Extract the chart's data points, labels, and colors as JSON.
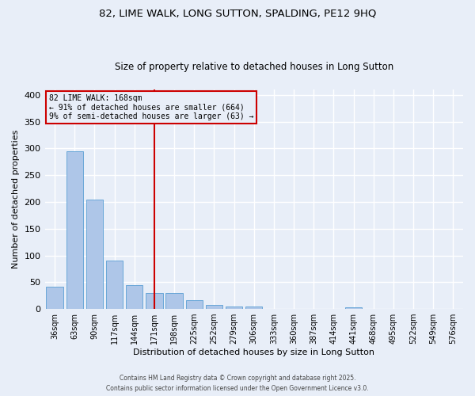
{
  "title_line1": "82, LIME WALK, LONG SUTTON, SPALDING, PE12 9HQ",
  "title_line2": "Size of property relative to detached houses in Long Sutton",
  "xlabel": "Distribution of detached houses by size in Long Sutton",
  "ylabel": "Number of detached properties",
  "categories": [
    "36sqm",
    "63sqm",
    "90sqm",
    "117sqm",
    "144sqm",
    "171sqm",
    "198sqm",
    "225sqm",
    "252sqm",
    "279sqm",
    "306sqm",
    "333sqm",
    "360sqm",
    "387sqm",
    "414sqm",
    "441sqm",
    "468sqm",
    "495sqm",
    "522sqm",
    "549sqm",
    "576sqm"
  ],
  "values": [
    41,
    294,
    204,
    90,
    44,
    30,
    30,
    16,
    8,
    4,
    4,
    0,
    0,
    0,
    0,
    3,
    0,
    0,
    0,
    0,
    0
  ],
  "bar_color": "#aec6e8",
  "bar_edgecolor": "#5a9fd4",
  "vline_x_index": 5,
  "vline_color": "#cc0000",
  "annotation_text": "82 LIME WALK: 168sqm\n← 91% of detached houses are smaller (664)\n9% of semi-detached houses are larger (63) →",
  "annotation_box_color": "#cc0000",
  "annotation_text_color": "#000000",
  "background_color": "#e8eef8",
  "grid_color": "#ffffff",
  "ylim": [
    0,
    410
  ],
  "yticks": [
    0,
    50,
    100,
    150,
    200,
    250,
    300,
    350,
    400
  ],
  "footer_line1": "Contains HM Land Registry data © Crown copyright and database right 2025.",
  "footer_line2": "Contains public sector information licensed under the Open Government Licence v3.0."
}
